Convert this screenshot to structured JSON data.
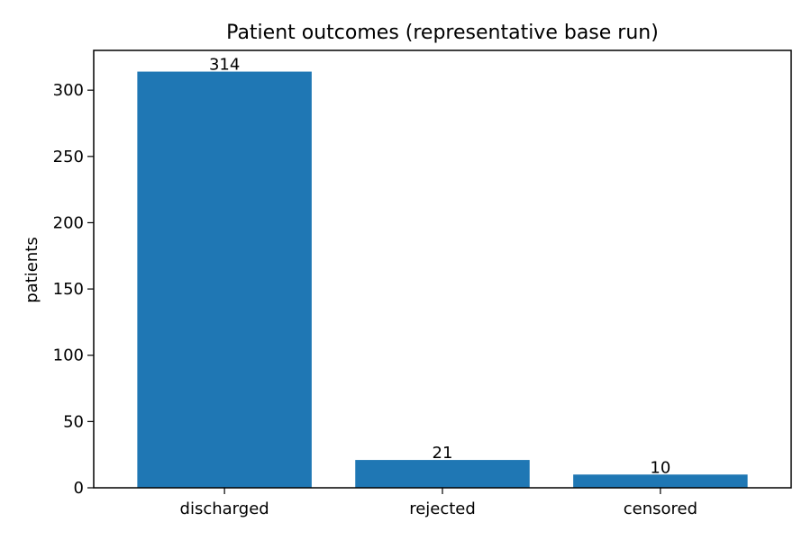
{
  "chart_data": {
    "type": "bar",
    "title": "Patient outcomes (representative base run)",
    "xlabel": "",
    "ylabel": "patients",
    "categories": [
      "discharged",
      "rejected",
      "censored"
    ],
    "values": [
      314,
      21,
      10
    ],
    "data_labels": [
      "314",
      "21",
      "10"
    ],
    "ylim": [
      0,
      330
    ],
    "yticks": [
      0,
      50,
      100,
      150,
      200,
      250,
      300
    ],
    "ytick_labels": [
      "0",
      "50",
      "100",
      "150",
      "200",
      "250",
      "300"
    ],
    "grid": false,
    "legend": "none",
    "bar_color": "#1f77b4"
  }
}
